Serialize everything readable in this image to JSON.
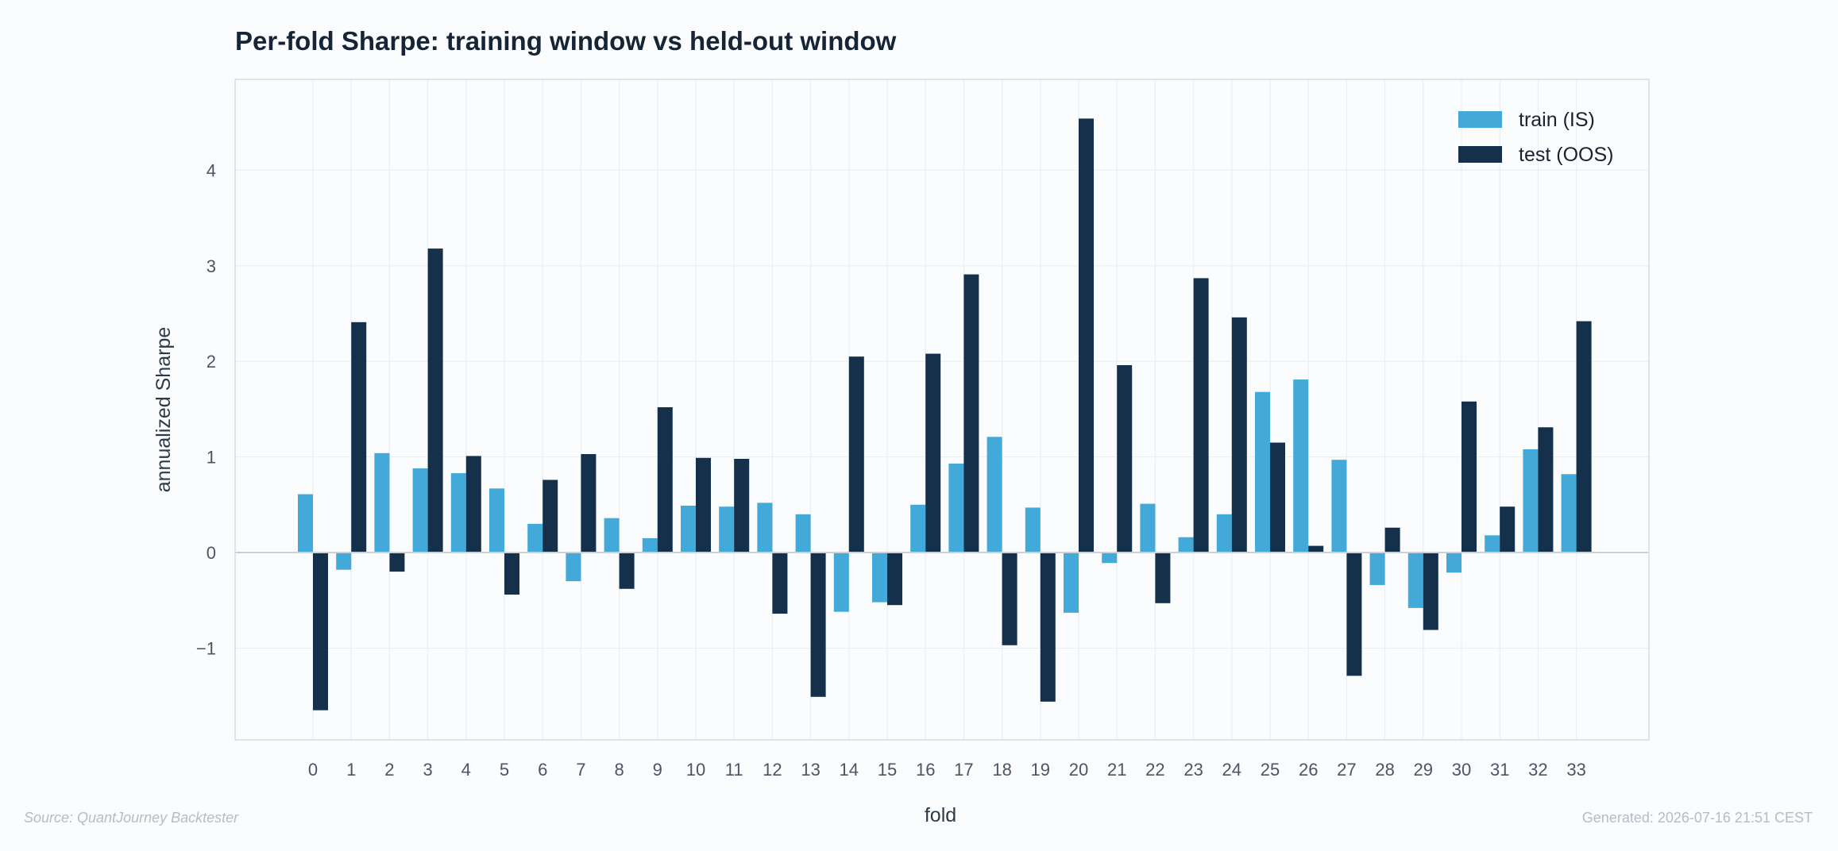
{
  "chart_data": {
    "type": "bar",
    "title": "Per-fold Sharpe: training window vs held-out window",
    "xlabel": "fold",
    "ylabel": "annualized Sharpe",
    "categories": [
      "0",
      "1",
      "2",
      "3",
      "4",
      "5",
      "6",
      "7",
      "8",
      "9",
      "10",
      "11",
      "12",
      "13",
      "14",
      "15",
      "16",
      "17",
      "18",
      "19",
      "20",
      "21",
      "22",
      "23",
      "24",
      "25",
      "26",
      "27",
      "28",
      "29",
      "30",
      "31",
      "32",
      "33"
    ],
    "yticks": [
      {
        "value": -1,
        "label": "−1"
      },
      {
        "value": 0,
        "label": "0"
      },
      {
        "value": 1,
        "label": "1"
      },
      {
        "value": 2,
        "label": "2"
      },
      {
        "value": 3,
        "label": "3"
      },
      {
        "value": 4,
        "label": "4"
      }
    ],
    "ylim": [
      -1.96,
      4.95
    ],
    "grid": true,
    "legend_position": "top-right",
    "series": [
      {
        "name": "train (IS)",
        "color": "#42a9d8",
        "values": [
          0.61,
          -0.18,
          1.04,
          0.88,
          0.83,
          0.67,
          0.3,
          -0.3,
          0.36,
          0.15,
          0.49,
          0.48,
          0.52,
          0.4,
          -0.62,
          -0.52,
          0.5,
          0.93,
          1.21,
          0.47,
          -0.63,
          -0.11,
          0.51,
          0.16,
          0.4,
          1.68,
          1.81,
          0.97,
          -0.34,
          -0.58,
          -0.21,
          0.18,
          1.08,
          0.82
        ]
      },
      {
        "name": "test (OOS)",
        "color": "#14304a",
        "values": [
          -1.65,
          2.41,
          -0.2,
          3.18,
          1.01,
          -0.44,
          0.76,
          1.03,
          -0.38,
          1.52,
          0.99,
          0.98,
          -0.64,
          -1.51,
          2.05,
          -0.55,
          2.08,
          2.91,
          -0.97,
          -1.56,
          4.54,
          1.96,
          -0.53,
          2.87,
          2.46,
          1.15,
          0.07,
          -1.29,
          0.26,
          -0.81,
          1.58,
          0.48,
          1.31,
          2.42
        ]
      }
    ]
  },
  "footer": {
    "source": "Source: QuantJourney Backtester",
    "generated": "Generated: 2026-07-16 21:51 CEST"
  }
}
